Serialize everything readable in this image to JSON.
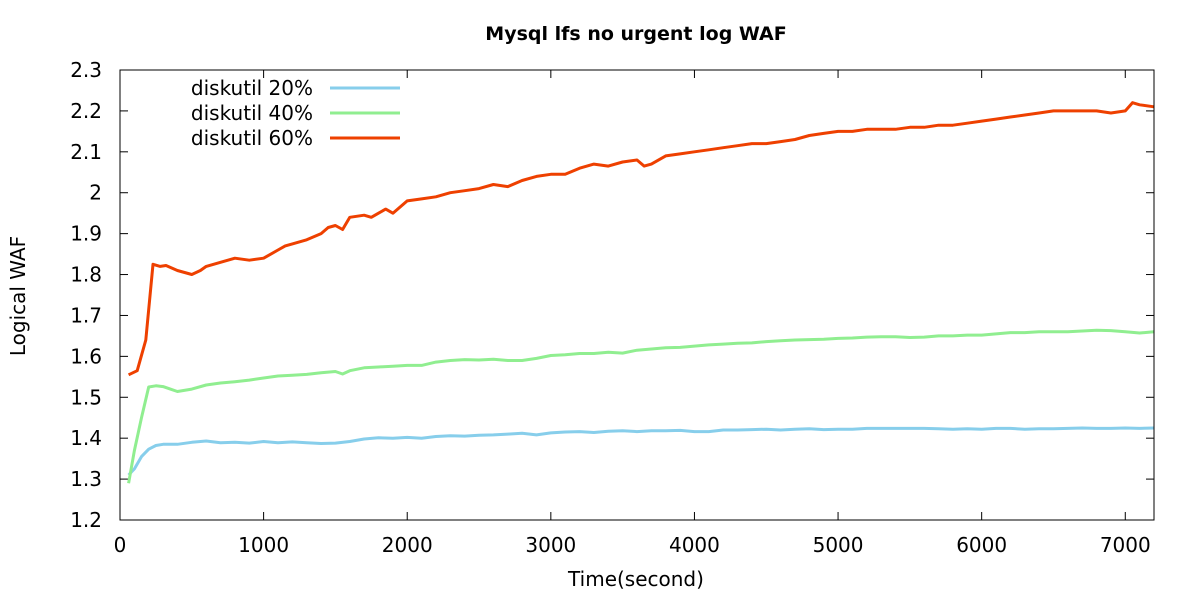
{
  "chart_data": {
    "type": "line",
    "title": "Mysql lfs no urgent log WAF",
    "xlabel": "Time(second)",
    "ylabel": "Logical WAF",
    "xlim": [
      0,
      7200
    ],
    "ylim": [
      1.2,
      2.3
    ],
    "xticks": [
      0,
      1000,
      2000,
      3000,
      4000,
      5000,
      6000,
      7000
    ],
    "xtick_labels": [
      "0",
      "1000",
      "2000",
      "3000",
      "4000",
      "5000",
      "6000",
      "7000"
    ],
    "yticks": [
      1.2,
      1.3,
      1.4,
      1.5,
      1.6,
      1.7,
      1.8,
      1.9,
      2.0,
      2.1,
      2.2,
      2.3
    ],
    "ytick_labels": [
      "1.2",
      "1.3",
      "1.4",
      "1.5",
      "1.6",
      "1.7",
      "1.8",
      "1.9",
      "2",
      "2.1",
      "2.2",
      "2.3"
    ],
    "grid": false,
    "legend": "top-left",
    "series": [
      {
        "name": "diskutil 20%",
        "color": "#87ceeb",
        "x": [
          60,
          100,
          150,
          200,
          250,
          300,
          400,
          500,
          600,
          700,
          800,
          900,
          1000,
          1100,
          1200,
          1300,
          1400,
          1500,
          1600,
          1700,
          1800,
          1900,
          2000,
          2100,
          2200,
          2300,
          2400,
          2500,
          2600,
          2700,
          2800,
          2900,
          3000,
          3100,
          3200,
          3300,
          3400,
          3500,
          3600,
          3700,
          3800,
          3900,
          4000,
          4100,
          4200,
          4300,
          4400,
          4500,
          4600,
          4700,
          4800,
          4900,
          5000,
          5100,
          5200,
          5300,
          5400,
          5500,
          5600,
          5700,
          5800,
          5900,
          6000,
          6100,
          6200,
          6300,
          6400,
          6500,
          6600,
          6700,
          6800,
          6900,
          7000,
          7100,
          7200
        ],
        "y": [
          1.31,
          1.325,
          1.355,
          1.373,
          1.382,
          1.385,
          1.385,
          1.39,
          1.393,
          1.389,
          1.39,
          1.388,
          1.392,
          1.389,
          1.391,
          1.389,
          1.387,
          1.388,
          1.392,
          1.398,
          1.401,
          1.4,
          1.402,
          1.4,
          1.404,
          1.406,
          1.405,
          1.407,
          1.408,
          1.41,
          1.412,
          1.408,
          1.413,
          1.415,
          1.416,
          1.414,
          1.417,
          1.418,
          1.416,
          1.418,
          1.418,
          1.419,
          1.416,
          1.416,
          1.42,
          1.42,
          1.421,
          1.422,
          1.42,
          1.422,
          1.423,
          1.421,
          1.422,
          1.422,
          1.424,
          1.424,
          1.424,
          1.424,
          1.424,
          1.423,
          1.422,
          1.423,
          1.422,
          1.424,
          1.424,
          1.422,
          1.423,
          1.423,
          1.424,
          1.425,
          1.424,
          1.424,
          1.425,
          1.424,
          1.425
        ]
      },
      {
        "name": "diskutil 40%",
        "color": "#90ee90",
        "x": [
          60,
          100,
          150,
          200,
          250,
          300,
          350,
          400,
          500,
          600,
          700,
          800,
          900,
          1000,
          1100,
          1200,
          1300,
          1400,
          1500,
          1550,
          1600,
          1700,
          1800,
          1900,
          2000,
          2100,
          2200,
          2300,
          2400,
          2500,
          2600,
          2700,
          2800,
          2900,
          3000,
          3100,
          3200,
          3300,
          3400,
          3500,
          3600,
          3700,
          3800,
          3900,
          4000,
          4100,
          4200,
          4300,
          4400,
          4500,
          4600,
          4700,
          4800,
          4900,
          5000,
          5100,
          5200,
          5300,
          5400,
          5500,
          5600,
          5700,
          5800,
          5900,
          6000,
          6100,
          6200,
          6300,
          6400,
          6500,
          6600,
          6700,
          6800,
          6900,
          7000,
          7100,
          7200
        ],
        "y": [
          1.29,
          1.37,
          1.45,
          1.525,
          1.528,
          1.526,
          1.52,
          1.514,
          1.52,
          1.53,
          1.535,
          1.538,
          1.542,
          1.547,
          1.552,
          1.554,
          1.556,
          1.56,
          1.563,
          1.557,
          1.565,
          1.572,
          1.574,
          1.576,
          1.578,
          1.578,
          1.586,
          1.59,
          1.592,
          1.591,
          1.593,
          1.59,
          1.59,
          1.595,
          1.602,
          1.604,
          1.607,
          1.607,
          1.61,
          1.608,
          1.615,
          1.618,
          1.621,
          1.622,
          1.625,
          1.628,
          1.63,
          1.632,
          1.633,
          1.636,
          1.638,
          1.64,
          1.641,
          1.642,
          1.644,
          1.645,
          1.647,
          1.648,
          1.648,
          1.646,
          1.647,
          1.65,
          1.65,
          1.652,
          1.652,
          1.655,
          1.658,
          1.658,
          1.66,
          1.66,
          1.66,
          1.662,
          1.664,
          1.663,
          1.66,
          1.657,
          1.66
        ]
      },
      {
        "name": "diskutil 60%",
        "color": "#ee4000",
        "x": [
          60,
          120,
          180,
          230,
          280,
          320,
          400,
          450,
          500,
          560,
          600,
          700,
          800,
          900,
          1000,
          1100,
          1150,
          1200,
          1300,
          1400,
          1450,
          1500,
          1550,
          1600,
          1700,
          1750,
          1800,
          1850,
          1900,
          2000,
          2100,
          2200,
          2300,
          2400,
          2500,
          2600,
          2700,
          2800,
          2900,
          3000,
          3100,
          3200,
          3300,
          3400,
          3500,
          3600,
          3650,
          3700,
          3800,
          3900,
          4000,
          4100,
          4200,
          4300,
          4400,
          4500,
          4600,
          4700,
          4800,
          4900,
          5000,
          5100,
          5200,
          5300,
          5400,
          5500,
          5600,
          5700,
          5800,
          5900,
          6000,
          6100,
          6200,
          6300,
          6400,
          6500,
          6600,
          6700,
          6800,
          6900,
          7000,
          7050,
          7100,
          7200
        ],
        "y": [
          1.555,
          1.565,
          1.64,
          1.825,
          1.82,
          1.822,
          1.81,
          1.805,
          1.8,
          1.81,
          1.82,
          1.83,
          1.84,
          1.835,
          1.84,
          1.86,
          1.87,
          1.875,
          1.885,
          1.9,
          1.915,
          1.92,
          1.91,
          1.94,
          1.945,
          1.94,
          1.95,
          1.96,
          1.95,
          1.98,
          1.985,
          1.99,
          2.0,
          2.005,
          2.01,
          2.02,
          2.015,
          2.03,
          2.04,
          2.045,
          2.045,
          2.06,
          2.07,
          2.065,
          2.075,
          2.08,
          2.065,
          2.07,
          2.09,
          2.095,
          2.1,
          2.105,
          2.11,
          2.115,
          2.12,
          2.12,
          2.125,
          2.13,
          2.14,
          2.145,
          2.15,
          2.15,
          2.155,
          2.155,
          2.155,
          2.16,
          2.16,
          2.165,
          2.165,
          2.17,
          2.175,
          2.18,
          2.185,
          2.19,
          2.195,
          2.2,
          2.2,
          2.2,
          2.2,
          2.195,
          2.2,
          2.22,
          2.215,
          2.21
        ]
      }
    ]
  }
}
